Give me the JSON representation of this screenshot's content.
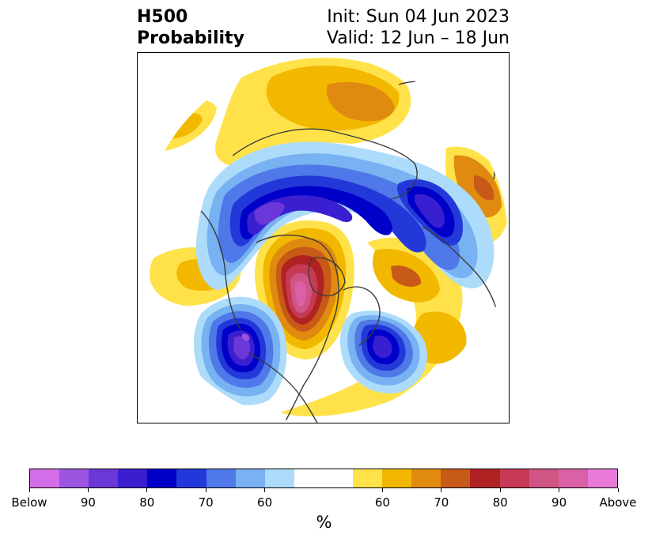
{
  "title": {
    "left_line1": "H500",
    "left_line2": "Probability",
    "right_line1": "Init: Sun 04 Jun 2023",
    "right_line2": "Valid: 12 Jun – 18 Jun"
  },
  "colorbar": {
    "below_colors": [
      "#d46ee8",
      "#9b55e0",
      "#6b37d8",
      "#3a1fd0",
      "#0000c8",
      "#2238d8",
      "#4f78e8",
      "#78b2f2",
      "#acdcfa"
    ],
    "neutral_color": "#ffffff",
    "above_colors": [
      "#ffe24a",
      "#f2b800",
      "#e08a10",
      "#c85a18",
      "#b02222",
      "#c63a55",
      "#d05585",
      "#da60a8",
      "#e87ad8"
    ],
    "tick_labels": [
      "Below",
      "90",
      "80",
      "70",
      "60",
      "60",
      "70",
      "80",
      "90",
      "Above"
    ],
    "units_label": "%"
  }
}
